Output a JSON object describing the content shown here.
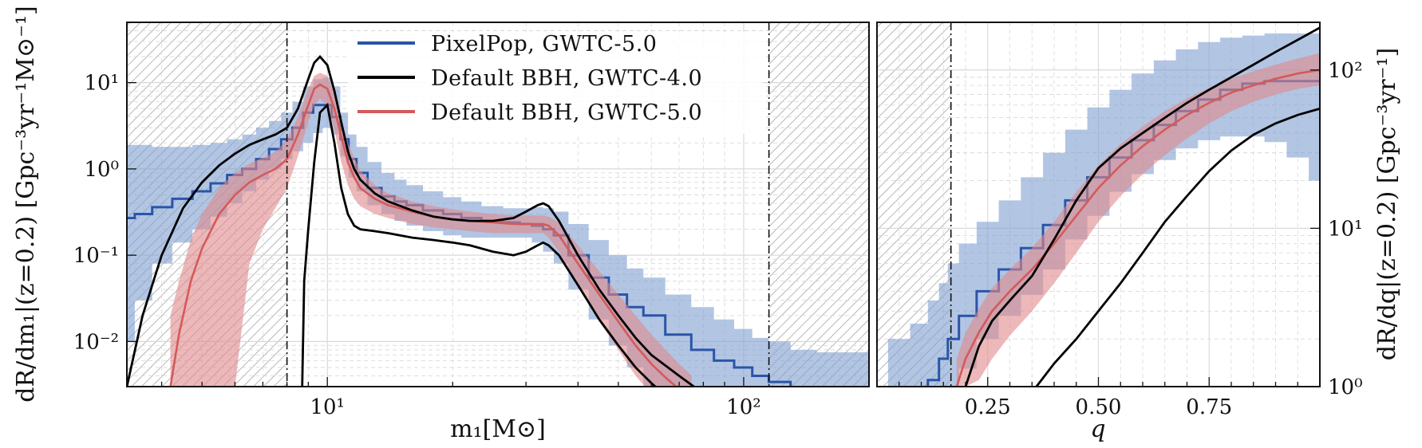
{
  "chart_data": [
    {
      "type": "line",
      "panel": "left",
      "xlabel": "m₁[M⊙]",
      "ylabel": "dR/dm₁|(z=0.2) [Gpc⁻³yr⁻¹M⊙⁻¹]",
      "xscale": "log",
      "yscale": "log",
      "xlim": [
        3.3,
        200
      ],
      "ylim": [
        0.003,
        50
      ],
      "xticks": [
        {
          "value": 10,
          "label": "10¹"
        },
        {
          "value": 100,
          "label": "10²"
        }
      ],
      "yticks": [
        {
          "value": 10,
          "label": "10¹"
        },
        {
          "value": 1,
          "label": "10⁰"
        },
        {
          "value": 0.1,
          "label": "10⁻¹"
        },
        {
          "value": 0.01,
          "label": "10⁻²"
        }
      ],
      "grid": true,
      "excluded_regions": [
        [
          3.3,
          8.0
        ],
        [
          115,
          200
        ]
      ],
      "boundary_lines": [
        8.0,
        115
      ],
      "series": [
        {
          "name": "PixelPop, GWTC-5.0",
          "color": "#2a55a8",
          "style": "step",
          "x": [
            3.3,
            3.6,
            4,
            4.5,
            5,
            5.5,
            6,
            6.5,
            7,
            7.5,
            8,
            8.5,
            9,
            9.5,
            10,
            10.5,
            11,
            11.5,
            12,
            13,
            14,
            15,
            16,
            18,
            20,
            22,
            25,
            28,
            30,
            32,
            34,
            36,
            40,
            45,
            50,
            55,
            60,
            70,
            80,
            90,
            100,
            110,
            120,
            140,
            160,
            200
          ],
          "median": [
            0.27,
            0.3,
            0.36,
            0.45,
            0.55,
            0.68,
            0.85,
            1.0,
            1.3,
            1.7,
            2.2,
            3.0,
            4.5,
            5.5,
            5.5,
            4.0,
            2.2,
            1.3,
            0.9,
            0.6,
            0.48,
            0.42,
            0.38,
            0.33,
            0.3,
            0.27,
            0.25,
            0.24,
            0.23,
            0.22,
            0.2,
            0.17,
            0.1,
            0.055,
            0.035,
            0.025,
            0.02,
            0.012,
            0.008,
            0.006,
            0.005,
            0.004,
            0.0034,
            0.0029,
            0.0026,
            0.0023
          ],
          "lower": [
            0.01,
            0.03,
            0.08,
            0.14,
            0.2,
            0.28,
            0.4,
            0.55,
            0.75,
            1.0,
            1.3,
            1.6,
            2.0,
            2.6,
            3.0,
            2.5,
            1.4,
            0.8,
            0.55,
            0.38,
            0.3,
            0.25,
            0.22,
            0.19,
            0.17,
            0.16,
            0.16,
            0.16,
            0.16,
            0.14,
            0.11,
            0.08,
            0.04,
            0.018,
            0.009,
            0.005,
            0.003,
            0.001,
            0.0005,
            0.0003,
            0.0002,
            0.0001,
            0.0001,
            0.0001,
            0.0001,
            0.0001
          ],
          "upper": [
            1.9,
            1.9,
            1.8,
            1.8,
            1.9,
            2.0,
            2.2,
            2.5,
            3.0,
            3.6,
            4.5,
            6.0,
            9.0,
            11.0,
            11.5,
            9.0,
            4.5,
            2.5,
            1.8,
            1.2,
            0.9,
            0.75,
            0.65,
            0.55,
            0.47,
            0.42,
            0.37,
            0.35,
            0.35,
            0.36,
            0.35,
            0.32,
            0.23,
            0.15,
            0.1,
            0.07,
            0.055,
            0.035,
            0.025,
            0.018,
            0.014,
            0.011,
            0.01,
            0.008,
            0.0075,
            0.0075
          ]
        },
        {
          "name": "Default BBH, GWTC-4.0",
          "color": "#000000",
          "style": "lines",
          "upper_line": {
            "x": [
              3.3,
              3.6,
              4,
              4.5,
              5,
              5.5,
              6,
              6.5,
              7,
              7.5,
              8,
              8.5,
              9,
              9.3,
              9.6,
              10,
              10.4,
              10.8,
              11.2,
              11.6,
              12,
              13,
              14,
              16,
              18,
              20,
              22,
              25,
              28,
              30,
              32,
              33,
              34,
              36,
              40,
              45,
              50,
              55,
              60,
              70,
              80,
              100
            ],
            "y": [
              0.003,
              0.02,
              0.1,
              0.35,
              0.7,
              1.1,
              1.5,
              1.9,
              2.2,
              2.5,
              3.0,
              5.0,
              11.0,
              17.0,
              20.0,
              16.0,
              8.0,
              3.5,
              1.6,
              1.0,
              0.75,
              0.52,
              0.42,
              0.33,
              0.28,
              0.26,
              0.25,
              0.25,
              0.27,
              0.32,
              0.38,
              0.4,
              0.37,
              0.25,
              0.1,
              0.04,
              0.02,
              0.011,
              0.007,
              0.004,
              0.0025,
              0.001
            ]
          },
          "lower_line": {
            "x": [
              8.7,
              8.8,
              9.0,
              9.3,
              9.6,
              10.0,
              10.4,
              10.8,
              11.2,
              11.6,
              12,
              13,
              14,
              16,
              18,
              20,
              22,
              25,
              28,
              30,
              32,
              33,
              34,
              36,
              40,
              45,
              50,
              55,
              60,
              64
            ],
            "y": [
              0.003,
              0.05,
              0.2,
              1.2,
              4.5,
              5.5,
              2.0,
              0.6,
              0.3,
              0.22,
              0.2,
              0.19,
              0.18,
              0.16,
              0.15,
              0.14,
              0.13,
              0.11,
              0.1,
              0.11,
              0.13,
              0.14,
              0.13,
              0.1,
              0.045,
              0.018,
              0.009,
              0.005,
              0.0033,
              0.0025
            ]
          }
        },
        {
          "name": "Default BBH, GWTC-5.0",
          "color": "#d45a5a",
          "style": "band",
          "x": [
            4.2,
            4.4,
            4.7,
            5,
            5.5,
            6,
            6.5,
            7,
            7.5,
            8,
            8.5,
            9,
            9.3,
            9.6,
            10,
            10.4,
            10.8,
            11.2,
            11.6,
            12,
            13,
            14,
            16,
            18,
            20,
            22,
            25,
            28,
            30,
            32,
            33,
            34,
            36,
            40,
            45,
            50,
            55,
            60,
            65,
            70,
            75
          ],
          "median": [
            0.003,
            0.012,
            0.05,
            0.12,
            0.3,
            0.5,
            0.7,
            0.85,
            1.0,
            1.3,
            2.5,
            5.5,
            8.5,
            9.5,
            8.5,
            5.0,
            2.4,
            1.2,
            0.8,
            0.6,
            0.45,
            0.38,
            0.32,
            0.28,
            0.26,
            0.25,
            0.24,
            0.23,
            0.23,
            0.23,
            0.23,
            0.22,
            0.17,
            0.08,
            0.035,
            0.017,
            0.009,
            0.0055,
            0.0038,
            0.0028,
            0.002
          ],
          "lower": [
            0.003,
            0.003,
            0.003,
            0.003,
            0.003,
            0.003,
            0.08,
            0.2,
            0.35,
            0.6,
            1.4,
            3.5,
            5.5,
            6.5,
            5.5,
            2.8,
            1.2,
            0.65,
            0.45,
            0.37,
            0.3,
            0.27,
            0.23,
            0.21,
            0.2,
            0.19,
            0.18,
            0.18,
            0.18,
            0.18,
            0.18,
            0.16,
            0.11,
            0.045,
            0.017,
            0.008,
            0.004,
            0.0025,
            0.0015,
            0.001,
            0.0005
          ],
          "upper": [
            0.02,
            0.05,
            0.15,
            0.3,
            0.6,
            0.9,
            1.15,
            1.35,
            1.55,
            2.2,
            4.0,
            8.5,
            12.0,
            13.0,
            12.0,
            7.5,
            3.8,
            2.0,
            1.35,
            0.95,
            0.65,
            0.52,
            0.42,
            0.37,
            0.34,
            0.32,
            0.3,
            0.29,
            0.29,
            0.29,
            0.29,
            0.28,
            0.24,
            0.13,
            0.065,
            0.035,
            0.02,
            0.012,
            0.008,
            0.0055,
            0.004
          ]
        }
      ]
    },
    {
      "type": "line",
      "panel": "right",
      "xlabel": "q",
      "ylabel": "dR/dq|(z=0.2) [Gpc⁻³yr⁻¹]",
      "xscale": "linear",
      "yscale": "log",
      "xlim": [
        0.0,
        1.0
      ],
      "ylim": [
        1,
        200
      ],
      "xticks": [
        {
          "value": 0.25,
          "label": "0.25"
        },
        {
          "value": 0.5,
          "label": "0.50"
        },
        {
          "value": 0.75,
          "label": "0.75"
        }
      ],
      "yticks": [
        {
          "value": 100,
          "label": "10²"
        },
        {
          "value": 10,
          "label": "10¹"
        },
        {
          "value": 1,
          "label": "10⁰"
        }
      ],
      "grid": true,
      "excluded_regions": [
        [
          0.0,
          0.167
        ]
      ],
      "boundary_lines": [
        0.167
      ],
      "series": [
        {
          "name": "PixelPop, GWTC-5.0",
          "color": "#2a55a8",
          "style": "step",
          "x": [
            0.05,
            0.1,
            0.13,
            0.15,
            0.17,
            0.2,
            0.25,
            0.3,
            0.35,
            0.4,
            0.45,
            0.5,
            0.55,
            0.6,
            0.65,
            0.7,
            0.75,
            0.8,
            0.85,
            0.9,
            0.95,
            1.0
          ],
          "median": [
            0.6,
            0.8,
            1.1,
            1.5,
            2.0,
            2.8,
            4.0,
            5.5,
            7.5,
            10.5,
            15.0,
            21.0,
            28.0,
            36.0,
            45.0,
            55.0,
            65.0,
            75.0,
            82.0,
            85.0,
            85.0,
            85.0
          ],
          "lower": [
            0.1,
            0.15,
            0.3,
            0.5,
            0.8,
            1.3,
            2.0,
            2.8,
            3.8,
            5.5,
            8.5,
            12.0,
            17.0,
            22.0,
            27.0,
            32.0,
            36.0,
            38.0,
            38.0,
            35.0,
            28.0,
            20.0
          ],
          "upper": [
            2.0,
            2.5,
            3.5,
            4.5,
            6.0,
            8.0,
            11.0,
            15.0,
            21.0,
            30.0,
            42.0,
            58.0,
            75.0,
            95.0,
            115.0,
            135.0,
            150.0,
            160.0,
            165.0,
            170.0,
            170.0,
            170.0
          ]
        },
        {
          "name": "Default BBH, GWTC-4.0",
          "color": "#000000",
          "style": "lines",
          "upper_line": {
            "x": [
              0.2,
              0.23,
              0.26,
              0.3,
              0.35,
              0.4,
              0.45,
              0.5,
              0.55,
              0.6,
              0.65,
              0.7,
              0.75,
              0.8,
              0.85,
              0.9,
              0.95,
              1.0
            ],
            "y": [
              1.0,
              1.8,
              2.6,
              3.5,
              5.0,
              8.5,
              15.0,
              24.0,
              32.0,
              40.0,
              50.0,
              62.0,
              75.0,
              90.0,
              108.0,
              130.0,
              155.0,
              185.0
            ]
          },
          "lower_line": {
            "x": [
              0.36,
              0.4,
              0.45,
              0.5,
              0.55,
              0.6,
              0.65,
              0.7,
              0.75,
              0.8,
              0.85,
              0.9,
              0.95,
              1.0
            ],
            "y": [
              1.0,
              1.4,
              2.0,
              3.0,
              4.5,
              7.0,
              11.0,
              16.0,
              23.0,
              31.0,
              39.0,
              46.0,
              52.0,
              57.0
            ]
          }
        },
        {
          "name": "Default BBH, GWTC-5.0",
          "color": "#d45a5a",
          "style": "band",
          "x": [
            0.18,
            0.2,
            0.23,
            0.26,
            0.3,
            0.35,
            0.4,
            0.45,
            0.5,
            0.55,
            0.6,
            0.65,
            0.7,
            0.75,
            0.8,
            0.85,
            0.9,
            0.95,
            1.0
          ],
          "median": [
            1.0,
            1.5,
            2.2,
            3.0,
            4.0,
            5.5,
            8.0,
            12.0,
            18.0,
            25.0,
            33.0,
            42.0,
            52.0,
            62.0,
            72.0,
            80.0,
            88.0,
            95.0,
            100.0
          ],
          "lower": [
            1.0,
            1.0,
            1.1,
            1.5,
            2.1,
            3.0,
            4.5,
            7.0,
            11.0,
            16.0,
            22.0,
            29.0,
            37.0,
            46.0,
            55.0,
            63.0,
            70.0,
            76.0,
            80.0
          ],
          "upper": [
            1.5,
            2.2,
            3.1,
            4.2,
            5.5,
            7.5,
            11.0,
            17.0,
            25.0,
            34.0,
            44.0,
            55.0,
            66.0,
            77.0,
            88.0,
            98.0,
            108.0,
            118.0,
            128.0
          ]
        }
      ]
    }
  ],
  "legend": {
    "placement": "top-center of left panel",
    "entries": [
      {
        "label": "PixelPop, GWTC-5.0",
        "color": "#2a55a8"
      },
      {
        "label": "Default BBH, GWTC-4.0",
        "color": "#000000"
      },
      {
        "label": "Default BBH, GWTC-5.0",
        "color": "#d45a5a"
      }
    ]
  },
  "colors": {
    "pixelpop_band": "#7f9fd0",
    "default5_band": "#e0898a",
    "grid": "#d9d9d9",
    "hatch": "#9a9a9a"
  }
}
